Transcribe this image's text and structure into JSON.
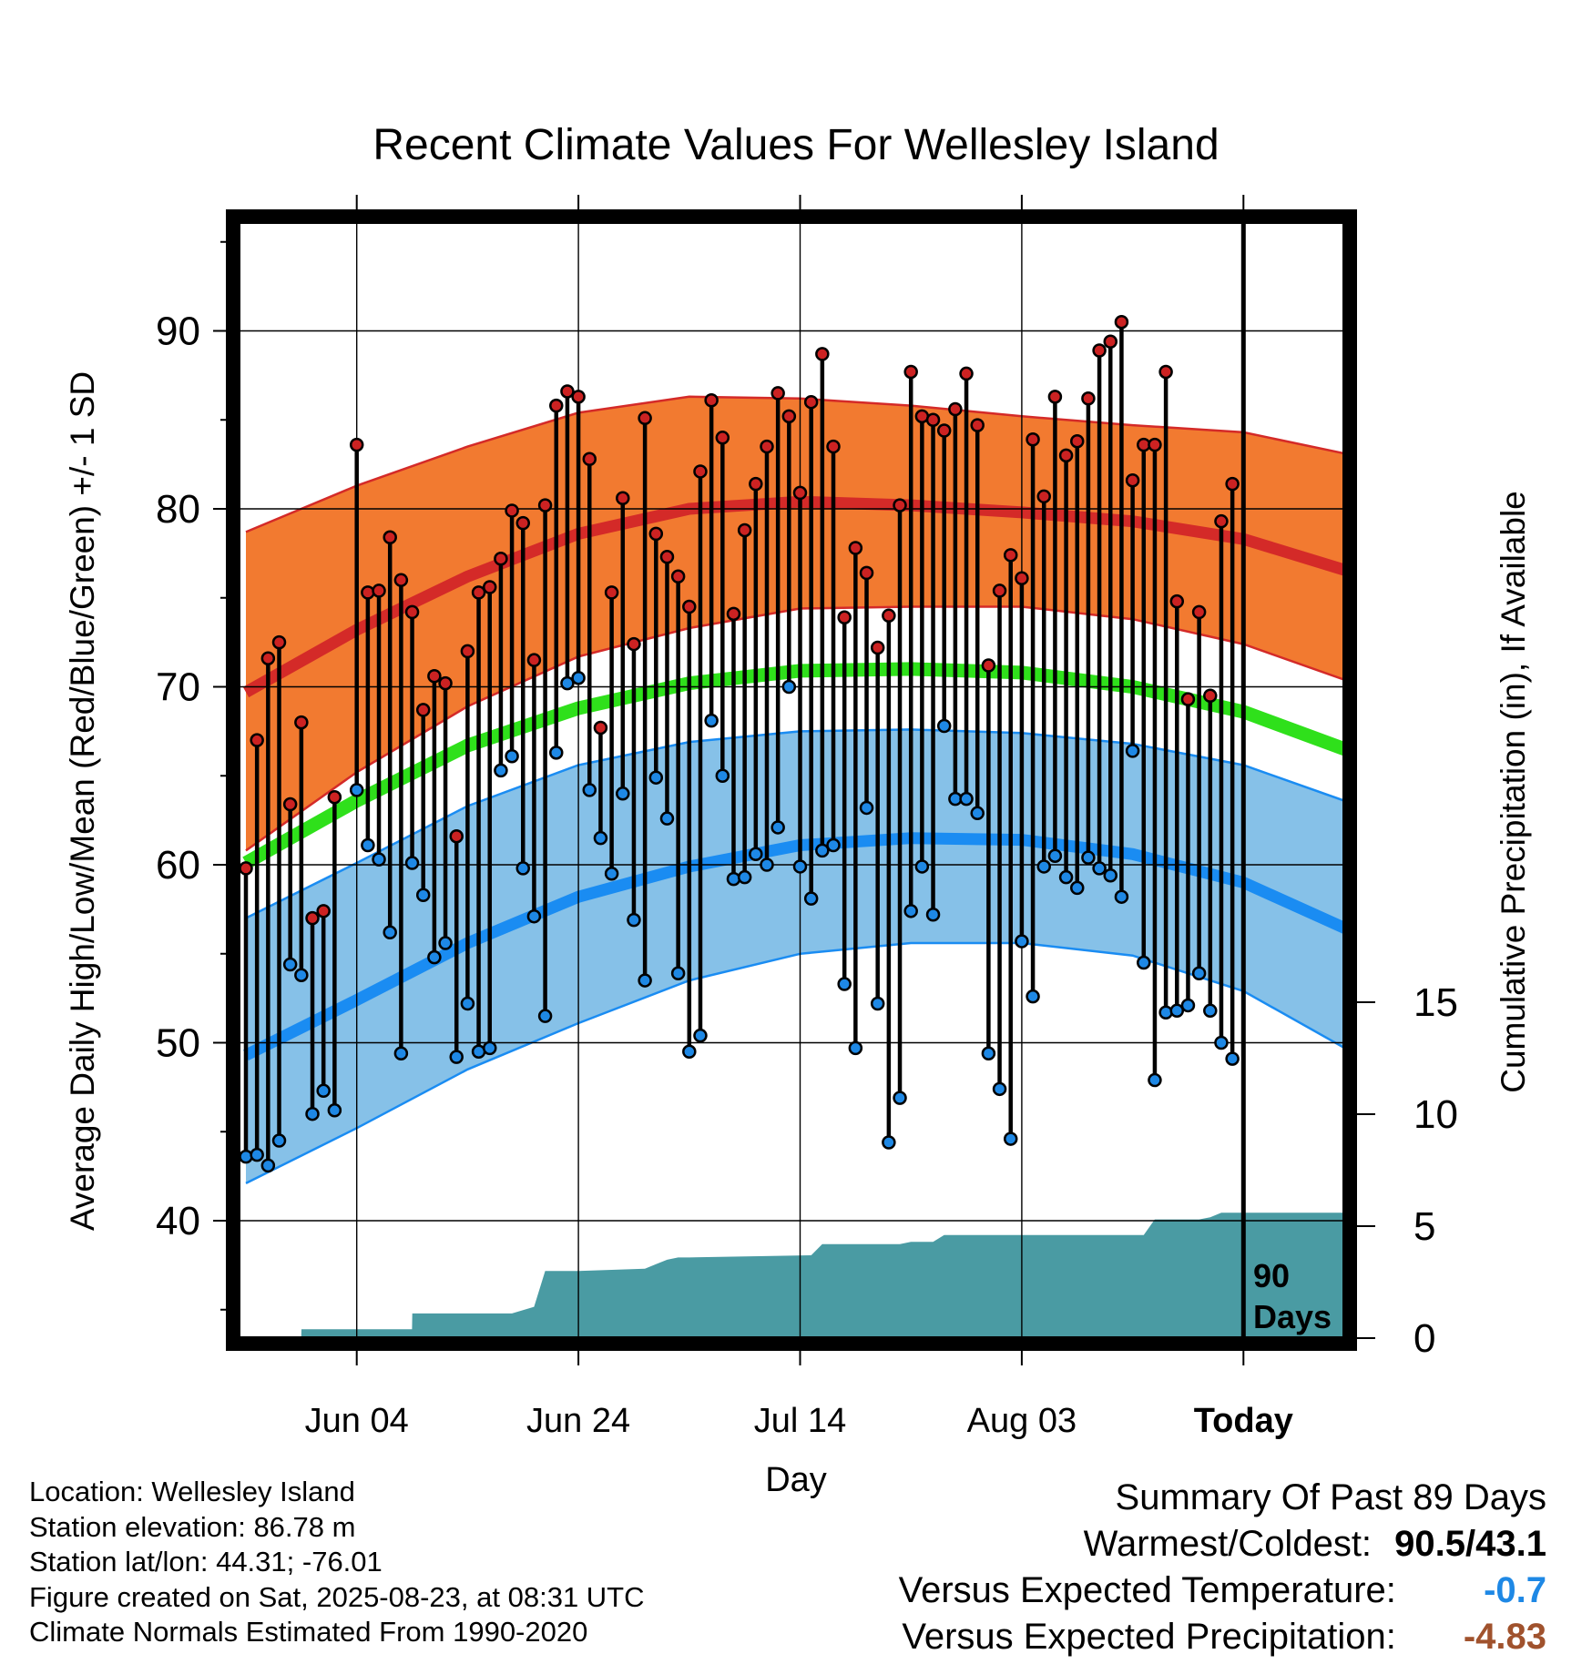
{
  "colors": {
    "high_band": "#f27a30",
    "high_line": "#d42a28",
    "low_band": "#86c1e8",
    "low_line": "#1a8cf2",
    "mean_line": "#2fe01b",
    "high_dot": "#cc2222",
    "low_dot": "#1e88e5",
    "precip_fill": "#4a9ba3",
    "temp_delta": "#1e88e5",
    "precip_delta": "#a0522d"
  },
  "footer": {
    "location": "Location: Wellesley Island",
    "elevation": "Station elevation: 86.78 m",
    "latlon": "Station lat/lon: 44.31; -76.01",
    "created": "Figure created on Sat, 2025-08-23, at 08:31 UTC",
    "normals": "Climate Normals Estimated From 1990-2020"
  },
  "summary": {
    "title": "Summary Of Past 89 Days",
    "warmest_label": "Warmest/Coldest:",
    "warmest_value": "90.5/43.1",
    "temp_label": "Versus Expected Temperature:",
    "temp_value": "-0.7",
    "precip_label": "Versus Expected Precipitation:",
    "precip_value": "-4.83"
  },
  "chart_data": {
    "type": "line",
    "title": "Recent Climate Values For Wellesley Island",
    "xlabel": "Day",
    "ylabel": "Average Daily High/Low/Mean (Red/Blue/Green) +/- 1 SD",
    "y2label": "Cumulative Precipitation (in), If Available",
    "x_tick_labels": [
      "Jun 04",
      "Jun 24",
      "Jul 14",
      "Aug 03",
      "Today"
    ],
    "x_tick_days": [
      10,
      30,
      50,
      70,
      90
    ],
    "xlim": [
      0,
      100
    ],
    "ylim": [
      33,
      96
    ],
    "y_ticks": [
      40,
      50,
      60,
      70,
      80,
      90
    ],
    "y2_ticks": [
      0,
      5,
      10,
      15
    ],
    "y2_range": [
      0,
      15
    ],
    "grid": true,
    "window_label_1": "90",
    "window_label_2": "Days",
    "normal_days": [
      0,
      10,
      20,
      30,
      40,
      50,
      60,
      70,
      80,
      90,
      100
    ],
    "normal_high": [
      69.7,
      73.2,
      76.2,
      78.6,
      80.0,
      80.4,
      80.2,
      79.8,
      79.3,
      78.3,
      76.4
    ],
    "normal_high_sd_upper": [
      78.7,
      81.3,
      83.5,
      85.4,
      86.3,
      86.2,
      85.8,
      85.2,
      84.7,
      84.3,
      83.0
    ],
    "normal_high_sd_lower": [
      60.8,
      65.2,
      68.9,
      71.7,
      73.3,
      74.4,
      74.5,
      74.5,
      73.8,
      72.4,
      70.2
    ],
    "normal_mean": [
      60.1,
      63.6,
      66.7,
      68.8,
      70.2,
      70.9,
      71.0,
      70.8,
      70.0,
      68.6,
      66.3
    ],
    "normal_low": [
      49.3,
      52.4,
      55.6,
      58.2,
      59.9,
      61.1,
      61.5,
      61.4,
      60.6,
      59.0,
      56.2
    ],
    "normal_low_sd_upper": [
      57.0,
      60.1,
      63.3,
      65.6,
      66.9,
      67.5,
      67.6,
      67.4,
      66.8,
      65.6,
      63.4
    ],
    "normal_low_sd_lower": [
      42.1,
      45.2,
      48.5,
      51.1,
      53.5,
      55.0,
      55.6,
      55.6,
      54.9,
      52.9,
      49.4
    ],
    "series": [
      {
        "name": "Daily High",
        "values": [
          59.8,
          67.0,
          71.6,
          72.5,
          63.4,
          68.0,
          57.0,
          57.4,
          63.8,
          null,
          83.6,
          75.3,
          75.4,
          78.4,
          76.0,
          74.2,
          68.7,
          70.6,
          70.2,
          61.6,
          72.0,
          75.3,
          75.6,
          77.2,
          79.9,
          79.2,
          71.5,
          80.2,
          85.8,
          86.6,
          86.3,
          82.8,
          67.7,
          75.3,
          80.6,
          72.4,
          85.1,
          78.6,
          77.3,
          76.2,
          74.5,
          82.1,
          86.1,
          84.0,
          74.1,
          78.8,
          81.4,
          83.5,
          86.5,
          85.2,
          80.9,
          86.0,
          88.7,
          83.5,
          73.9,
          77.8,
          76.4,
          72.2,
          74.0,
          80.2,
          87.7,
          85.2,
          85.0,
          84.4,
          85.6,
          87.6,
          84.7,
          71.2,
          75.4,
          77.4,
          76.1,
          83.9,
          80.7,
          86.3,
          83.0,
          83.8,
          86.2,
          88.9,
          89.4,
          90.5,
          81.6,
          83.6,
          83.6,
          87.7,
          74.8,
          69.3,
          74.2,
          69.5,
          79.3,
          81.4
        ]
      },
      {
        "name": "Daily Low",
        "values": [
          43.6,
          43.7,
          43.1,
          44.5,
          54.4,
          53.8,
          46.0,
          47.3,
          46.2,
          null,
          64.2,
          61.1,
          60.3,
          56.2,
          49.4,
          60.1,
          58.3,
          54.8,
          55.6,
          49.2,
          52.2,
          49.5,
          49.7,
          65.3,
          66.1,
          59.8,
          57.1,
          51.5,
          66.3,
          70.2,
          70.5,
          64.2,
          61.5,
          59.5,
          64.0,
          56.9,
          53.5,
          64.9,
          62.6,
          53.9,
          49.5,
          50.4,
          68.1,
          65.0,
          59.2,
          59.3,
          60.6,
          60.0,
          62.1,
          70.0,
          59.9,
          58.1,
          60.8,
          61.1,
          53.3,
          49.7,
          63.2,
          52.2,
          44.4,
          46.9,
          57.4,
          59.9,
          57.2,
          67.8,
          63.7,
          63.7,
          62.9,
          49.4,
          47.4,
          44.6,
          55.7,
          52.6,
          59.9,
          60.5,
          59.3,
          58.7,
          60.4,
          59.8,
          59.4,
          58.2,
          66.4,
          54.5,
          47.9,
          51.7,
          51.8,
          52.1,
          53.9,
          51.8,
          50.0,
          49.1
        ]
      }
    ],
    "precip_days": [
      0,
      4.99,
      5.01,
      14.99,
      15.01,
      24,
      26,
      27,
      28,
      29,
      30,
      36,
      37,
      38,
      39,
      40,
      51,
      52,
      59,
      60,
      61,
      62,
      63,
      64,
      65,
      66,
      67,
      68,
      69,
      70,
      71,
      72,
      73,
      74,
      75,
      76,
      77,
      78,
      79,
      80,
      81,
      82,
      83,
      84,
      85,
      86,
      87,
      88,
      89,
      90,
      91,
      92,
      100
    ],
    "precip_cumulative": [
      0,
      0,
      0.4,
      0.4,
      1.1,
      1.1,
      1.4,
      3.0,
      3.0,
      3.0,
      3.0,
      3.1,
      3.3,
      3.5,
      3.6,
      3.6,
      3.7,
      4.2,
      4.2,
      4.3,
      4.3,
      4.3,
      4.6,
      4.6,
      4.6,
      4.6,
      4.6,
      4.6,
      4.6,
      4.6,
      4.6,
      4.6,
      4.6,
      4.6,
      4.6,
      4.6,
      4.6,
      4.6,
      4.6,
      4.6,
      4.6,
      5.3,
      5.3,
      5.3,
      5.3,
      5.3,
      5.4,
      5.6,
      5.6,
      5.6,
      5.6,
      5.6,
      5.6
    ]
  }
}
